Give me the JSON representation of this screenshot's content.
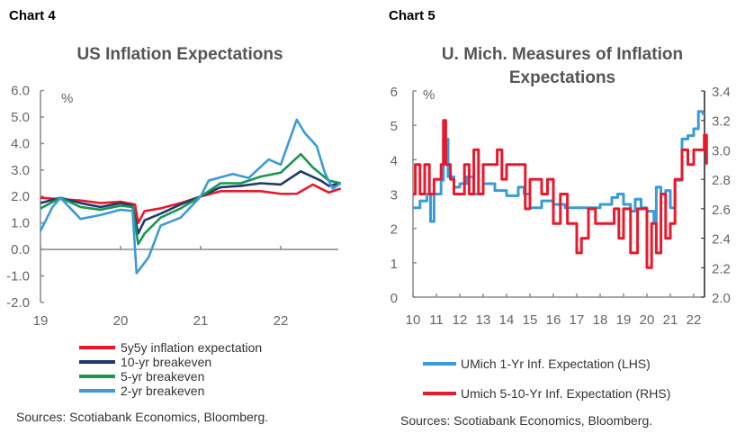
{
  "chart_data": [
    {
      "type": "line",
      "header": "Chart 4",
      "title": "US Inflation Expectations",
      "ylabel": "%",
      "ylim": [
        -2,
        6
      ],
      "yticks": [
        "6.0",
        "5.0",
        "4.0",
        "3.0",
        "2.0",
        "1.0",
        "0.0",
        "-1.0",
        "-2.0"
      ],
      "xticks": [
        "19",
        "20",
        "21",
        "22"
      ],
      "legend": "bottom",
      "source": "Sources:  Scotiabank Economics, Bloomberg.",
      "series": [
        {
          "name": "5y5y inflation expectation",
          "color": "#e8192c",
          "x": [
            19.0,
            19.5,
            19.75,
            20.0,
            20.18,
            20.22,
            20.3,
            20.5,
            20.75,
            21.0,
            21.25,
            21.5,
            21.75,
            22.0,
            22.2,
            22.4,
            22.6,
            22.75
          ],
          "y": [
            1.95,
            1.85,
            1.75,
            1.8,
            1.7,
            1.0,
            1.45,
            1.55,
            1.75,
            2.0,
            2.2,
            2.2,
            2.2,
            2.1,
            2.1,
            2.45,
            2.15,
            2.3
          ]
        },
        {
          "name": "10-yr breakeven",
          "color": "#1f3a6e",
          "x": [
            19.0,
            19.25,
            19.5,
            19.75,
            20.0,
            20.15,
            20.22,
            20.3,
            20.5,
            20.75,
            21.0,
            21.25,
            21.5,
            21.75,
            22.0,
            22.25,
            22.5,
            22.6,
            22.75
          ],
          "y": [
            1.75,
            1.95,
            1.75,
            1.6,
            1.75,
            1.65,
            0.6,
            1.1,
            1.35,
            1.7,
            2.0,
            2.35,
            2.4,
            2.5,
            2.45,
            2.95,
            2.6,
            2.4,
            2.5
          ]
        },
        {
          "name": "5-yr breakeven",
          "color": "#1a9650",
          "x": [
            19.0,
            19.25,
            19.5,
            19.75,
            20.0,
            20.15,
            20.22,
            20.3,
            20.5,
            20.75,
            21.0,
            21.25,
            21.5,
            21.75,
            22.0,
            22.25,
            22.4,
            22.6,
            22.75
          ],
          "y": [
            1.55,
            1.95,
            1.6,
            1.5,
            1.65,
            1.6,
            0.2,
            0.6,
            1.2,
            1.55,
            2.0,
            2.5,
            2.5,
            2.75,
            2.9,
            3.6,
            3.1,
            2.6,
            2.5
          ]
        },
        {
          "name": "2-yr breakeven",
          "color": "#3b9bd6",
          "x": [
            19.0,
            19.15,
            19.25,
            19.5,
            19.75,
            20.0,
            20.15,
            20.2,
            20.35,
            20.5,
            20.75,
            21.0,
            21.1,
            21.4,
            21.6,
            21.85,
            22.0,
            22.2,
            22.3,
            22.45,
            22.55,
            22.65,
            22.75
          ],
          "y": [
            0.7,
            1.6,
            1.95,
            1.15,
            1.3,
            1.5,
            1.45,
            -0.9,
            -0.3,
            0.9,
            1.2,
            2.0,
            2.6,
            2.85,
            2.7,
            3.4,
            3.2,
            4.9,
            4.4,
            3.9,
            2.9,
            2.3,
            2.5
          ]
        }
      ]
    },
    {
      "type": "line",
      "header": "Chart 5",
      "title": "U. Mich. Measures of Inflation Expectations",
      "ylabel": "%",
      "ylim": [
        0,
        6
      ],
      "y2lim": [
        2.0,
        3.4
      ],
      "yticks": [
        "6",
        "5",
        "4",
        "3",
        "2",
        "1",
        "0"
      ],
      "y2ticks": [
        "3.4",
        "3.2",
        "3.0",
        "2.8",
        "2.6",
        "2.4",
        "2.2",
        "2.0"
      ],
      "xticks": [
        "10",
        "11",
        "12",
        "13",
        "14",
        "15",
        "16",
        "17",
        "18",
        "19",
        "20",
        "21",
        "22"
      ],
      "legend": "bottom",
      "source": "Sources: Scotiabank Economics, Bloomberg.",
      "series": [
        {
          "name": "UMich 1-Yr Inf. Expectation (LHS)",
          "axis": "left",
          "color": "#3b9bd6",
          "x": [
            10.0,
            10.3,
            10.6,
            10.75,
            10.9,
            11.2,
            11.3,
            11.5,
            11.75,
            12.0,
            12.3,
            12.6,
            13.0,
            13.5,
            14.0,
            14.5,
            14.75,
            15.0,
            15.5,
            16.0,
            16.5,
            17.0,
            17.5,
            18.0,
            18.5,
            18.75,
            19.0,
            19.3,
            19.5,
            19.75,
            20.0,
            20.3,
            20.4,
            20.6,
            20.8,
            21.0,
            21.2,
            21.5,
            21.75,
            22.0,
            22.2,
            22.4
          ],
          "y": [
            2.6,
            2.8,
            3.0,
            2.2,
            3.0,
            3.4,
            4.6,
            3.5,
            3.2,
            3.3,
            3.5,
            3.0,
            3.3,
            3.1,
            2.95,
            3.2,
            3.0,
            2.6,
            2.8,
            2.7,
            2.6,
            2.6,
            2.6,
            2.7,
            2.9,
            3.0,
            2.7,
            2.5,
            2.85,
            2.6,
            2.5,
            2.2,
            3.2,
            3.0,
            3.1,
            2.6,
            3.4,
            4.6,
            4.7,
            4.9,
            5.4,
            5.3
          ]
        },
        {
          "name": "Umich 5-10-Yr Inf. Expectation (RHS)",
          "axis": "right",
          "color": "#e8192c",
          "x": [
            10.0,
            10.1,
            10.3,
            10.5,
            10.7,
            10.9,
            11.2,
            11.3,
            11.4,
            11.6,
            11.75,
            12.2,
            12.4,
            12.6,
            12.8,
            13.0,
            13.3,
            13.6,
            13.8,
            14.0,
            14.5,
            14.8,
            15.0,
            15.5,
            15.75,
            16.0,
            16.3,
            16.6,
            17.0,
            17.2,
            17.5,
            17.8,
            18.0,
            18.4,
            18.6,
            18.8,
            19.0,
            19.3,
            19.6,
            20.0,
            20.2,
            20.4,
            20.6,
            20.8,
            21.0,
            21.2,
            21.5,
            21.75,
            22.0,
            22.2,
            22.45,
            22.55
          ],
          "y": [
            2.7,
            2.9,
            2.7,
            2.9,
            2.7,
            2.8,
            2.9,
            3.2,
            2.9,
            2.8,
            2.7,
            2.9,
            2.7,
            3.0,
            2.7,
            2.9,
            2.9,
            3.0,
            2.8,
            2.9,
            2.9,
            2.6,
            2.8,
            2.7,
            2.8,
            2.5,
            2.7,
            2.5,
            2.3,
            2.4,
            2.6,
            2.5,
            2.5,
            2.5,
            2.6,
            2.4,
            2.6,
            2.3,
            2.6,
            2.2,
            2.5,
            2.3,
            2.7,
            2.4,
            2.5,
            2.8,
            3.0,
            2.9,
            3.0,
            3.0,
            3.1,
            2.9
          ]
        }
      ]
    }
  ]
}
